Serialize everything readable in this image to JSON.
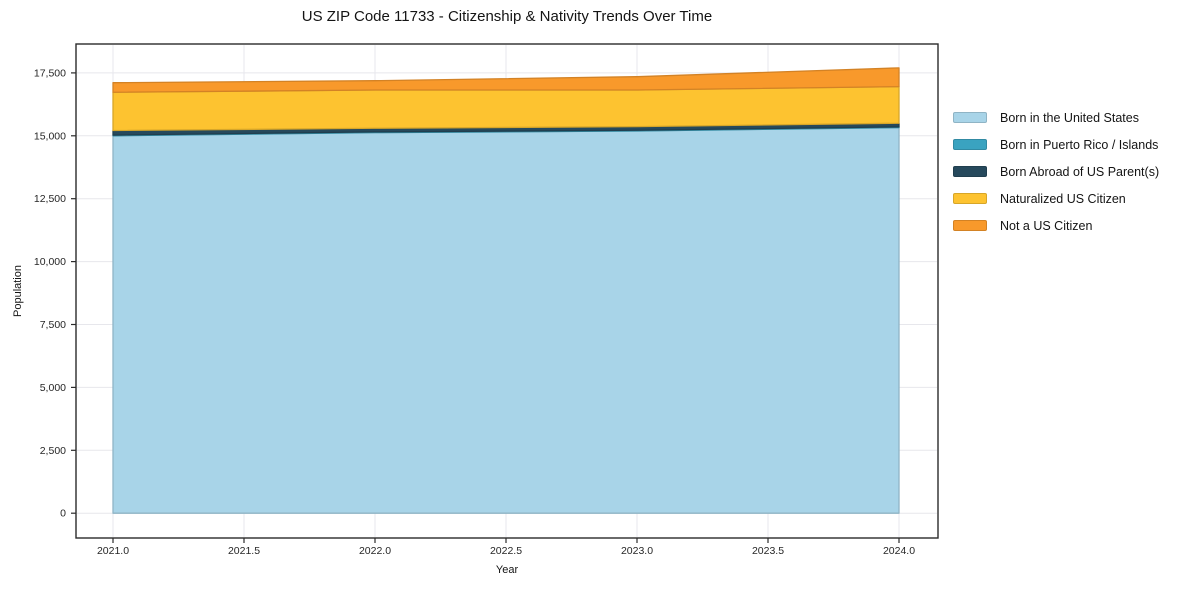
{
  "colors": {
    "grid": "#e7e7ec",
    "spine": "#2b2b2b",
    "text": "#141414",
    "tick_text": "#262626",
    "background": "#ffffff"
  },
  "chart_data": {
    "type": "area",
    "stacked": true,
    "title": "US ZIP Code 11733 - Citizenship & Nativity Trends Over Time",
    "xlabel": "Year",
    "ylabel": "Population",
    "x": [
      2021,
      2022,
      2023,
      2024
    ],
    "x_tick_values": [
      2021.0,
      2021.5,
      2022.0,
      2022.5,
      2023.0,
      2023.5,
      2024.0
    ],
    "x_tick_labels": [
      "2021.0",
      "2021.5",
      "2022.0",
      "2022.5",
      "2023.0",
      "2023.5",
      "2024.0"
    ],
    "y_tick_values": [
      0,
      2500,
      5000,
      7500,
      10000,
      12500,
      15000,
      17500
    ],
    "y_tick_labels": [
      "0",
      "2,500",
      "5,000",
      "7,500",
      "10,000",
      "12,500",
      "15,000",
      "17,500"
    ],
    "xlim": [
      2020.86,
      2024.15
    ],
    "ylim": [
      -990,
      18650
    ],
    "grid": true,
    "legend_position": "outside-right",
    "series": [
      {
        "name": "Born in the United States",
        "color": "#a8d4e8",
        "values": [
          15000,
          15125,
          15190,
          15325
        ]
      },
      {
        "name": "Born in Puerto Rico / Islands",
        "color": "#3aa3c0",
        "values": [
          30,
          30,
          30,
          30
        ]
      },
      {
        "name": "Born Abroad of US Parent(s)",
        "color": "#26495c",
        "values": [
          180,
          145,
          145,
          145
        ]
      },
      {
        "name": "Naturalized US Citizen",
        "color": "#fdc330",
        "values": [
          1520,
          1520,
          1455,
          1455
        ]
      },
      {
        "name": "Not a US Citizen",
        "color": "#f8992b",
        "values": [
          380,
          370,
          530,
          745
        ]
      }
    ],
    "stacked_totals": [
      17110,
      17190,
      17350,
      17700
    ]
  }
}
